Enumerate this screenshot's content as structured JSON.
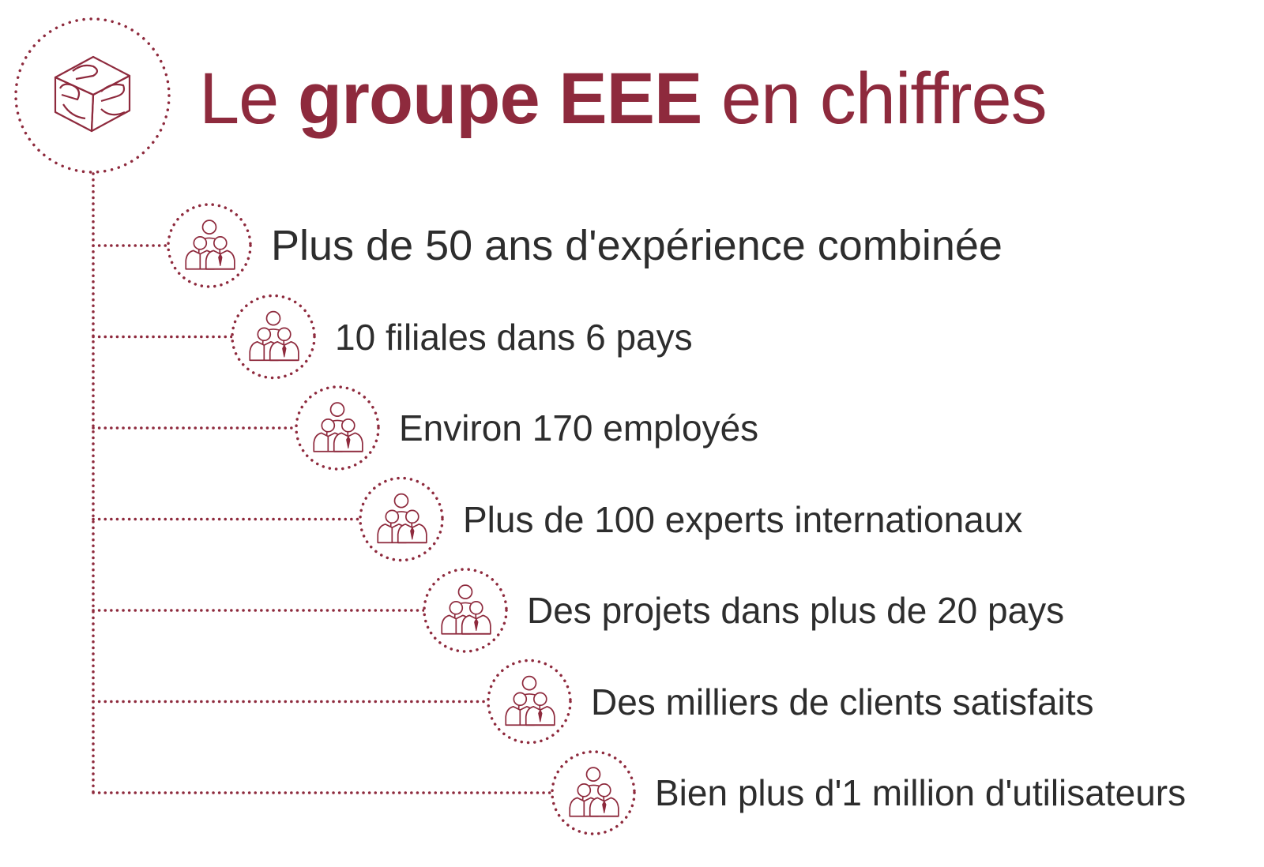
{
  "title": {
    "prefix": "Le ",
    "bold": "groupe EEE",
    "suffix": " en chiffres"
  },
  "logo": {
    "icon": "eee-logo-icon"
  },
  "colors": {
    "accent": "#8e2a3d",
    "text": "#2d2d2d"
  },
  "items": [
    {
      "label": "Plus de 50 ans d'expérience combinée",
      "icon": "people-group-icon"
    },
    {
      "label": "10 filiales dans 6 pays",
      "icon": "people-group-icon"
    },
    {
      "label": "Environ 170 employés",
      "icon": "people-group-icon"
    },
    {
      "label": "Plus de 100 experts internationaux",
      "icon": "people-group-icon"
    },
    {
      "label": "Des projets dans plus de 20 pays",
      "icon": "people-group-icon"
    },
    {
      "label": "Des milliers de clients satisfaits",
      "icon": "people-group-icon"
    },
    {
      "label": "Bien plus d'1 million d'utilisateurs",
      "icon": "people-group-icon"
    }
  ]
}
